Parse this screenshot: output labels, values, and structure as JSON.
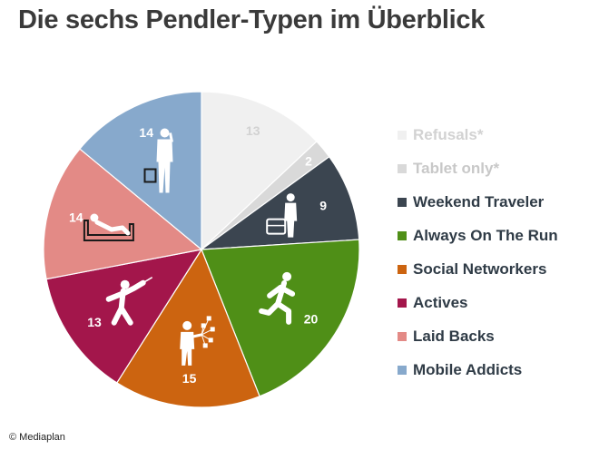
{
  "header": {
    "title": "Die sechs Pendler-Typen im Überblick"
  },
  "footer": {
    "copyright": "© Mediaplan"
  },
  "chart_data": {
    "type": "pie",
    "title": "Die sechs Pendler-Typen im Überblick",
    "legend_placement": "right",
    "slices": [
      {
        "label": "Refusals*",
        "value": 13,
        "color": "#f0f0f0",
        "label_color": "#d2d2d2",
        "legend_text_color": "#d2d2d2",
        "icon": "none"
      },
      {
        "label": "Tablet only*",
        "value": 2,
        "color": "#d9d9d9",
        "label_color": "#ffffff",
        "legend_text_color": "#c8c8c8",
        "icon": "none"
      },
      {
        "label": "Weekend Traveler",
        "value": 9,
        "color": "#3b4550",
        "label_color": "#ffffff",
        "legend_text_color": "#2f3b46",
        "icon": "traveler-with-suitcase-icon"
      },
      {
        "label": "Always On The Run",
        "value": 20,
        "color": "#4f8f17",
        "label_color": "#ffffff",
        "legend_text_color": "#2f3b46",
        "icon": "runner-icon"
      },
      {
        "label": "Social Networkers",
        "value": 15,
        "color": "#cc6410",
        "label_color": "#ffffff",
        "legend_text_color": "#2f3b46",
        "icon": "networker-icon"
      },
      {
        "label": "Actives",
        "value": 13,
        "color": "#a3164b",
        "label_color": "#ffffff",
        "legend_text_color": "#2f3b46",
        "icon": "fencer-icon"
      },
      {
        "label": "Laid Backs",
        "value": 14,
        "color": "#e38a86",
        "label_color": "#ffffff",
        "legend_text_color": "#2f3b46",
        "icon": "reclining-person-icon"
      },
      {
        "label": "Mobile Addicts",
        "value": 14,
        "color": "#87a9cc",
        "label_color": "#ffffff",
        "legend_text_color": "#2f3b46",
        "icon": "businessman-phone-icon"
      }
    ]
  }
}
